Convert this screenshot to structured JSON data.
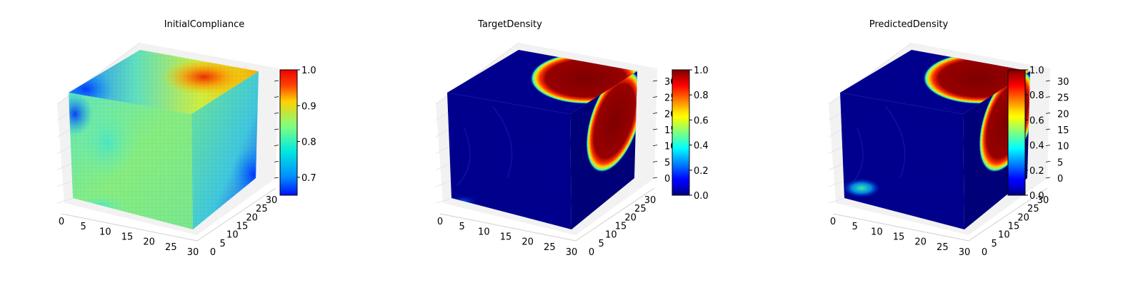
{
  "chart_data": [
    {
      "type": "3d-voxel",
      "title": "InitialCompliance",
      "x_ticks": [
        "0",
        "5",
        "10",
        "15",
        "20",
        "25",
        "30"
      ],
      "y_ticks": [
        "0",
        "5",
        "10",
        "15",
        "20",
        "25",
        "30"
      ],
      "z_ticks": [],
      "colorbar": {
        "colormap": "jet",
        "range": [
          0.65,
          1.0
        ],
        "ticks": [
          "0.7",
          "0.8",
          "0.9",
          "1.0"
        ],
        "tick_values": [
          0.7,
          0.8,
          0.9,
          1.0
        ]
      }
    },
    {
      "type": "3d-voxel",
      "title": "TargetDensity",
      "x_ticks": [
        "0",
        "5",
        "10",
        "15",
        "20",
        "25",
        "30"
      ],
      "y_ticks": [
        "0",
        "5",
        "10",
        "15",
        "20",
        "25",
        "30"
      ],
      "z_ticks": [
        "0",
        "5",
        "10",
        "15",
        "20",
        "25",
        "30"
      ],
      "colorbar": {
        "colormap": "jet",
        "range": [
          0.0,
          1.0
        ],
        "ticks": [
          "0.0",
          "0.2",
          "0.4",
          "0.6",
          "0.8",
          "1.0"
        ],
        "tick_values": [
          0.0,
          0.2,
          0.4,
          0.6,
          0.8,
          1.0
        ]
      }
    },
    {
      "type": "3d-voxel",
      "title": "PredictedDensity",
      "x_ticks": [
        "0",
        "5",
        "10",
        "15",
        "20",
        "25",
        "30"
      ],
      "y_ticks": [
        "0",
        "5",
        "10",
        "15",
        "20",
        "25",
        "30"
      ],
      "z_ticks": [
        "0",
        "5",
        "10",
        "15",
        "20",
        "25",
        "30"
      ],
      "colorbar": {
        "colormap": "jet",
        "range": [
          0.0,
          1.0
        ],
        "ticks": [
          "0.0",
          "0.2",
          "0.4",
          "0.6",
          "0.8",
          "1.0"
        ],
        "tick_values": [
          0.0,
          0.2,
          0.4,
          0.6,
          0.8,
          1.0
        ]
      }
    }
  ]
}
